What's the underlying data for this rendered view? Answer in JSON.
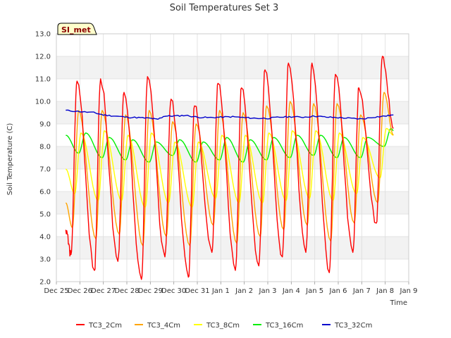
{
  "chart_data": {
    "type": "line",
    "title": "Soil Temperatures Set 3",
    "xlabel": "Time",
    "ylabel": "Soil Temperature (C)",
    "ylim": [
      2.0,
      13.0
    ],
    "yticks": [
      "2.0",
      "3.0",
      "4.0",
      "5.0",
      "6.0",
      "7.0",
      "8.0",
      "9.0",
      "10.0",
      "11.0",
      "12.0",
      "13.0"
    ],
    "xlim_days": [
      0,
      15
    ],
    "xticks": [
      "Dec 25",
      "Dec 26",
      "Dec 27",
      "Dec 28",
      "Dec 29",
      "Dec 30",
      "Dec 31",
      "Jan 1",
      "Jan 2",
      "Jan 3",
      "Jan 4",
      "Jan 5",
      "Jan 6",
      "Jan 7",
      "Jan 8",
      "Jan 9"
    ],
    "grid": true,
    "badge": "SI_met",
    "legend_position": "bottom",
    "series": [
      {
        "name": "TC3_2Cm",
        "color": "#ff0000",
        "daily_max": [
          10.9,
          11.0,
          10.4,
          11.1,
          10.1,
          9.8,
          10.8,
          10.6,
          11.4,
          11.7,
          11.7,
          11.2,
          10.6,
          12.0
        ],
        "daily_min": [
          3.2,
          2.5,
          2.9,
          2.1,
          3.1,
          2.2,
          3.3,
          2.5,
          2.7,
          3.1,
          3.3,
          2.4,
          3.3,
          4.6
        ],
        "start_value": 4.3,
        "end_value": 8.8
      },
      {
        "name": "TC3_4Cm",
        "color": "#ffa500",
        "daily_max": [
          9.6,
          9.6,
          9.4,
          9.6,
          9.1,
          9.0,
          9.6,
          9.5,
          9.8,
          10.0,
          9.9,
          9.9,
          9.4,
          10.4
        ],
        "daily_min": [
          4.4,
          3.9,
          4.1,
          3.6,
          4.0,
          3.6,
          4.5,
          3.7,
          4.0,
          4.3,
          4.5,
          3.8,
          4.6,
          5.5
        ],
        "start_value": 5.5,
        "end_value": 8.5
      },
      {
        "name": "TC3_8Cm",
        "color": "#ffff00",
        "daily_max": [
          8.6,
          8.7,
          8.5,
          8.6,
          8.2,
          8.2,
          8.5,
          8.5,
          8.6,
          8.7,
          8.7,
          8.6,
          8.4,
          8.8
        ],
        "daily_min": [
          5.9,
          5.6,
          5.6,
          5.3,
          5.5,
          5.3,
          5.7,
          5.5,
          5.5,
          5.6,
          5.7,
          5.6,
          5.9,
          6.6
        ],
        "start_value": 7.0,
        "end_value": 8.5
      },
      {
        "name": "TC3_16Cm",
        "color": "#00ee00",
        "daily_max": [
          8.6,
          8.4,
          8.3,
          8.2,
          8.3,
          8.2,
          8.4,
          8.3,
          8.4,
          8.5,
          8.5,
          8.4,
          8.4,
          8.8
        ],
        "daily_min": [
          7.7,
          7.5,
          7.4,
          7.3,
          7.6,
          7.3,
          7.4,
          7.3,
          7.4,
          7.5,
          7.6,
          7.5,
          7.5,
          8.0
        ],
        "start_value": 8.5,
        "end_value": 8.7
      },
      {
        "name": "TC3_32Cm",
        "color": "#0000cc",
        "x_days": [
          0.4,
          1.0,
          1.6,
          2.0,
          2.5,
          3.0,
          3.5,
          4.0,
          4.3,
          4.6,
          5.0,
          5.5,
          6.0,
          6.5,
          7.0,
          7.5,
          8.0,
          8.5,
          9.0,
          9.5,
          10.0,
          10.5,
          11.0,
          11.5,
          12.0,
          12.5,
          13.0,
          13.5,
          14.0,
          14.35
        ],
        "values": [
          9.6,
          9.55,
          9.5,
          9.4,
          9.35,
          9.3,
          9.28,
          9.25,
          9.2,
          9.35,
          9.35,
          9.38,
          9.3,
          9.28,
          9.3,
          9.32,
          9.28,
          9.25,
          9.25,
          9.3,
          9.32,
          9.3,
          9.35,
          9.3,
          9.28,
          9.25,
          9.22,
          9.3,
          9.35,
          9.4
        ]
      }
    ]
  }
}
